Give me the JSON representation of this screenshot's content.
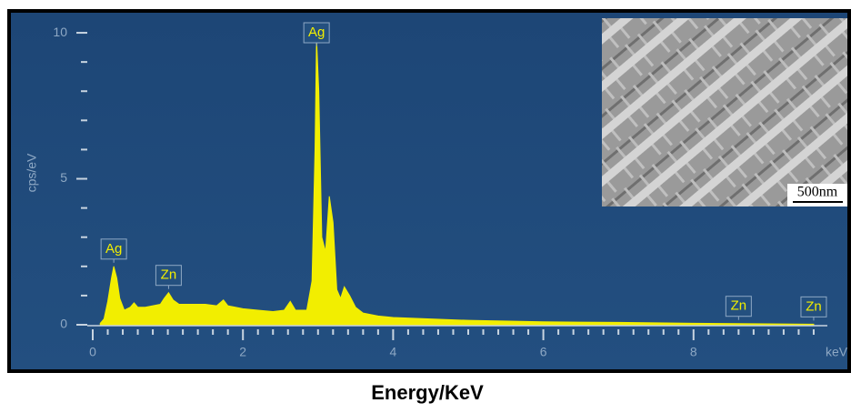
{
  "chart_data": {
    "type": "area",
    "title": "Energy/KeV",
    "y_label": "cps/eV",
    "x_label": "keV",
    "inset_label": "500nm",
    "color": "#f2ee00",
    "x": [
      0.1,
      0.15,
      0.2,
      0.25,
      0.28,
      0.32,
      0.36,
      0.42,
      0.5,
      0.55,
      0.6,
      0.7,
      0.8,
      0.9,
      0.95,
      1.01,
      1.07,
      1.15,
      1.3,
      1.5,
      1.65,
      1.74,
      1.8,
      2.0,
      2.2,
      2.4,
      2.55,
      2.63,
      2.7,
      2.85,
      2.92,
      2.96,
      2.98,
      3.01,
      3.05,
      3.1,
      3.15,
      3.2,
      3.25,
      3.3,
      3.35,
      3.42,
      3.5,
      3.6,
      3.8,
      4.0,
      4.5,
      5.0,
      6.0,
      7.0,
      8.0,
      8.6,
      9.0,
      9.6
    ],
    "values": [
      0.05,
      0.2,
      0.8,
      1.6,
      2.0,
      1.6,
      0.9,
      0.5,
      0.6,
      0.75,
      0.6,
      0.6,
      0.65,
      0.7,
      0.9,
      1.1,
      0.85,
      0.7,
      0.7,
      0.7,
      0.65,
      0.85,
      0.65,
      0.55,
      0.5,
      0.45,
      0.5,
      0.8,
      0.5,
      0.5,
      1.5,
      6,
      9.8,
      8,
      3,
      2.5,
      4.4,
      3.5,
      1.2,
      0.9,
      1.3,
      1.0,
      0.6,
      0.4,
      0.3,
      0.25,
      0.2,
      0.15,
      0.1,
      0.08,
      0.05,
      0.04,
      0.03,
      0.02
    ],
    "annotations": [
      {
        "text": "Ag",
        "x": 0.28
      },
      {
        "text": "Zn",
        "x": 1.01
      },
      {
        "text": "Ag",
        "x": 2.98
      },
      {
        "text": "Zn",
        "x": 8.6
      },
      {
        "text": "Zn",
        "x": 9.6
      }
    ],
    "xlim": [
      0,
      9.8
    ],
    "ylim": [
      0,
      10.5
    ],
    "xticks": [
      0,
      2,
      4,
      6,
      8
    ],
    "yticks": [
      0,
      5,
      10
    ],
    "xminorticks": [
      0.2,
      0.4,
      0.6,
      0.8,
      1,
      1.2,
      1.4,
      1.6,
      1.8,
      2.2,
      2.4,
      2.6,
      2.8,
      3,
      3.2,
      3.4,
      3.6,
      3.8,
      4.2,
      4.4,
      4.6,
      4.8,
      5,
      5.2,
      5.4,
      5.6,
      5.8,
      6.2,
      6.4,
      6.6,
      6.8,
      7,
      7.2,
      7.4,
      7.6,
      7.8,
      8.2,
      8.4,
      8.6,
      8.8,
      9,
      9.2,
      9.4,
      9.6
    ],
    "yminorticks": [
      1,
      2,
      3,
      4,
      6,
      7,
      8,
      9
    ]
  }
}
